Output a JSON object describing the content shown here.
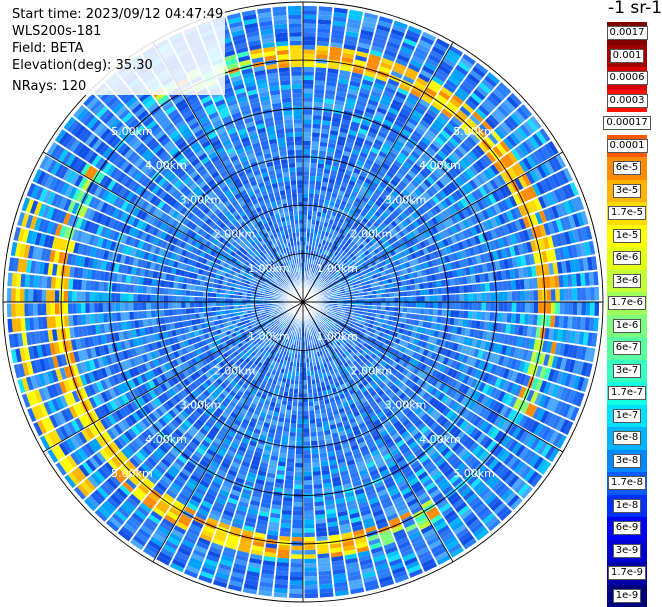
{
  "info": {
    "start_time": "Start time: 2023/09/12 04:47:49",
    "instrument": "WLS200s-181",
    "field": "Field: BETA",
    "elevation": "Elevation(deg): 35.30",
    "nrays": "NRays: 120"
  },
  "colorbar": {
    "units": "-1 sr-1",
    "labels": [
      "0.0017",
      "0.001",
      "0.0006",
      "0.0003",
      "0.00017",
      "0.0001",
      "6e-5",
      "3e-5",
      "1.7e-5",
      "1e-5",
      "6e-6",
      "3e-6",
      "1.7e-6",
      "1e-6",
      "6e-7",
      "3e-7",
      "1.7e-7",
      "1e-7",
      "6e-8",
      "3e-8",
      "1.7e-8",
      "1e-8",
      "6e-9",
      "3e-9",
      "1.7e-9",
      "1e-9"
    ],
    "colors": [
      "#800000",
      "#a00000",
      "#d80000",
      "#ff1000",
      "#ffffff",
      "#ff5a00",
      "#ff8c00",
      "#ffb400",
      "#ffdc00",
      "#ffff00",
      "#e4ff12",
      "#c2ff36",
      "#a0ff5a",
      "#7dff7d",
      "#5aff9e",
      "#36ffc0",
      "#12ffe4",
      "#00e0ff",
      "#00b4ff",
      "#0088ff",
      "#005cff",
      "#0030ff",
      "#0000fa",
      "#0000d0",
      "#0000a6",
      "#00007c"
    ]
  },
  "chart_data": {
    "type": "heatmap",
    "projection": "polar (PPI scan)",
    "field": "BETA",
    "elevation_deg": 35.3,
    "n_rays": 120,
    "range_rings_km": [
      1.0,
      2.0,
      3.0,
      4.0,
      5.0
    ],
    "ring_labels": [
      "1.00km",
      "2.00km",
      "3.00km",
      "4.00km",
      "5.00km"
    ],
    "max_range_km": 6.2,
    "azimuth_gridlines_deg": [
      0,
      30,
      60,
      90,
      120,
      150,
      180,
      210,
      240,
      270,
      300,
      330
    ],
    "colorscale": "log, 1e-9 to 0.0017",
    "dominant_value": "1e-8 to 3e-8 (blue)",
    "features": [
      {
        "description": "high backscatter ring",
        "range_km": [
          4.9,
          5.3
        ],
        "value_range": [
          "3e-6",
          "6e-5"
        ]
      },
      {
        "description": "bright segment west",
        "range_km": [
          5.8,
          6.0
        ],
        "value_range": [
          "1e-5",
          "6e-5"
        ]
      }
    ],
    "grid": true
  }
}
